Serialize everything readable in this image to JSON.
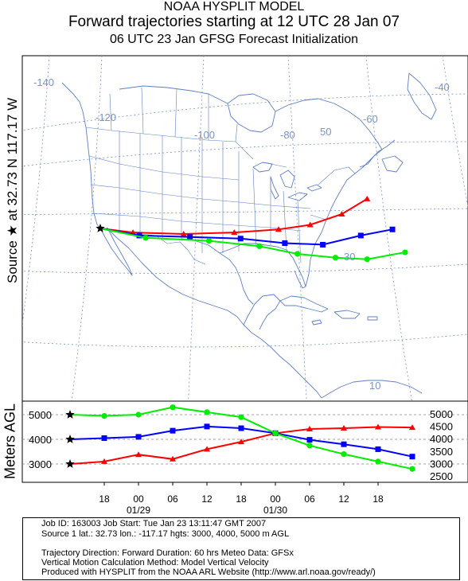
{
  "header": {
    "line1": "NOAA HYSPLIT MODEL",
    "line2": "Forward trajectories starting at 12 UTC 28 Jan 07",
    "line3": "06 UTC 23 Jan    GFSG  Forecast Initialization"
  },
  "source_label": "Source ★ at    32.73 N   117.17 W",
  "map": {
    "longitude_labels": [
      "-140",
      "-120",
      "-100",
      "-80",
      "-60",
      "-40"
    ],
    "latitude_labels": [
      "50",
      "30",
      "10"
    ]
  },
  "chart_data": {
    "type": "line",
    "ylabel": "Meters AGL",
    "x_hours": [
      0,
      6,
      12,
      18,
      24,
      30,
      36,
      42,
      48,
      54,
      60
    ],
    "x_tick_labels": [
      "18",
      "00",
      "06",
      "12",
      "18",
      "00",
      "06",
      "12",
      "18"
    ],
    "x_tick_hours": [
      6,
      12,
      18,
      24,
      30,
      36,
      42,
      48,
      54
    ],
    "date_labels": [
      {
        "text": "01/29",
        "hour": 12
      },
      {
        "text": "01/30",
        "hour": 36
      }
    ],
    "left_axis": {
      "ticks": [
        3000,
        4000,
        5000
      ]
    },
    "right_axis": {
      "ticks": [
        2500,
        3000,
        3500,
        4000,
        4500,
        5000
      ]
    },
    "series": [
      {
        "color": "#ff0000",
        "marker": "triangle",
        "height_m": [
          3000,
          3100,
          3380,
          3200,
          3600,
          3900,
          4250,
          4420,
          4450,
          4500,
          4480
        ]
      },
      {
        "color": "#0000ff",
        "marker": "square",
        "height_m": [
          4000,
          4050,
          4100,
          4350,
          4520,
          4450,
          4250,
          3980,
          3800,
          3600,
          3300
        ]
      },
      {
        "color": "#00ee00",
        "marker": "circle",
        "height_m": [
          5000,
          4950,
          5000,
          5300,
          5100,
          4900,
          4250,
          3750,
          3400,
          3100,
          2800
        ]
      }
    ],
    "map_tracks": [
      {
        "color": "#ff0000",
        "lonlat": [
          [
            -117.17,
            32.73
          ],
          [
            -112,
            32.2
          ],
          [
            -104,
            32.0
          ],
          [
            -96,
            32.2
          ],
          [
            -89,
            32.6
          ],
          [
            -84,
            33.2
          ],
          [
            -79,
            34.6
          ],
          [
            -75,
            36.6
          ]
        ]
      },
      {
        "color": "#0000ff",
        "lonlat": [
          [
            -117.17,
            32.73
          ],
          [
            -111,
            31.8
          ],
          [
            -103,
            31.6
          ],
          [
            -95,
            31.4
          ],
          [
            -88,
            30.8
          ],
          [
            -82,
            30.6
          ],
          [
            -76,
            31.8
          ],
          [
            -71,
            32.6
          ]
        ]
      },
      {
        "color": "#00ee00",
        "lonlat": [
          [
            -117.17,
            32.73
          ],
          [
            -110,
            31.5
          ],
          [
            -100,
            31.1
          ],
          [
            -92,
            30.4
          ],
          [
            -86,
            29.4
          ],
          [
            -80,
            28.9
          ],
          [
            -75,
            28.7
          ],
          [
            -69,
            29.6
          ]
        ]
      }
    ]
  },
  "info": {
    "line1": "Job ID: 163003                                    Job Start: Tue Jan 23 13:11:47 GMT 2007",
    "line2": "Source 1 lat.: 32.73   lon.: -117.17   hgts: 3000, 4000, 5000 m AGL",
    "line3": "Trajectory Direction: Forward    Duration: 60 hrs     Meteo Data: GFSx",
    "line4": "Vertical Motion Calculation Method:        Model Vertical Velocity",
    "line5": "Produced with HYSPLIT from the NOAA ARL Website (http://www.arl.noaa.gov/ready/)"
  }
}
